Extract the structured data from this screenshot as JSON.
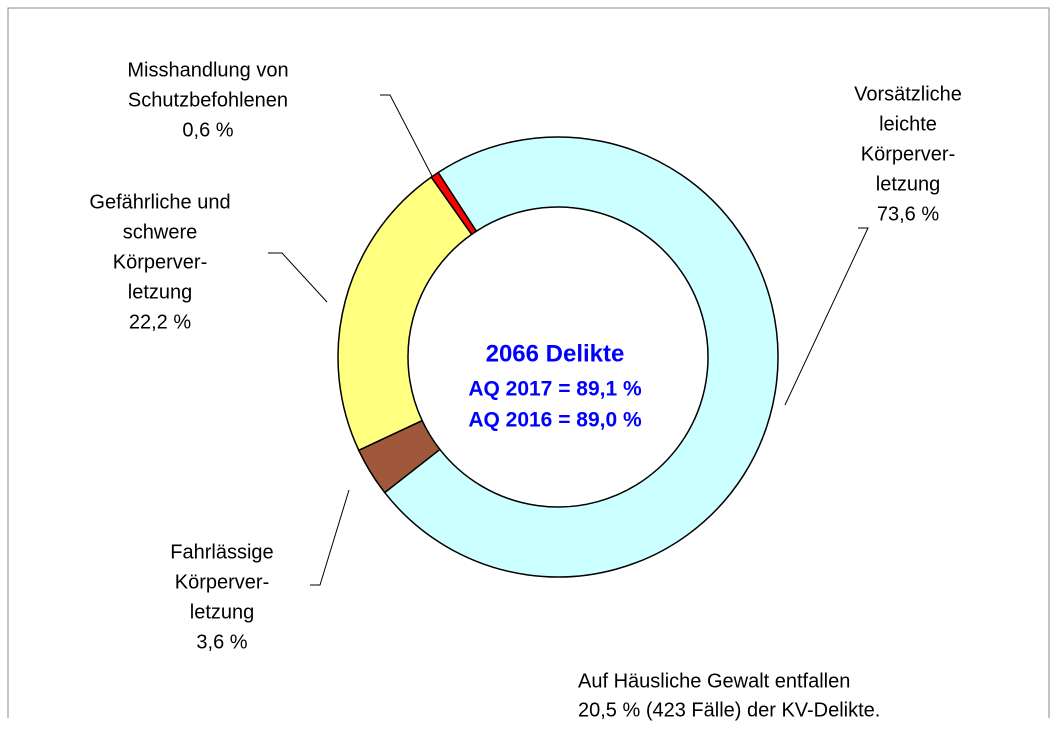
{
  "chart_data": {
    "type": "donut",
    "categories": [
      [
        "Vorsätzliche",
        "leichte",
        "Körperver-",
        "letzung"
      ],
      [
        "Fahrlässige",
        "Körperver-",
        "letzung"
      ],
      [
        "Gefährliche und",
        "schwere",
        "Körperver-",
        "letzung"
      ],
      [
        "Misshandlung von",
        "Schutzbefohlenen"
      ]
    ],
    "values": [
      73.6,
      3.6,
      22.2,
      0.6
    ],
    "value_labels": [
      "73,6 %",
      "3,6 %",
      "22,2 %",
      "0,6 %"
    ],
    "colors": [
      "#ccffff",
      "#a0583a",
      "#ffff80",
      "#ff0000"
    ],
    "annotations": [
      "2066 Delikte",
      "AQ 2017 = 89,1 %",
      "AQ 2016 = 89,0 %"
    ],
    "footnote": [
      "Auf Häusliche Gewalt entfallen",
      "20,5 % (423 Fälle) der KV-Delikte."
    ]
  }
}
